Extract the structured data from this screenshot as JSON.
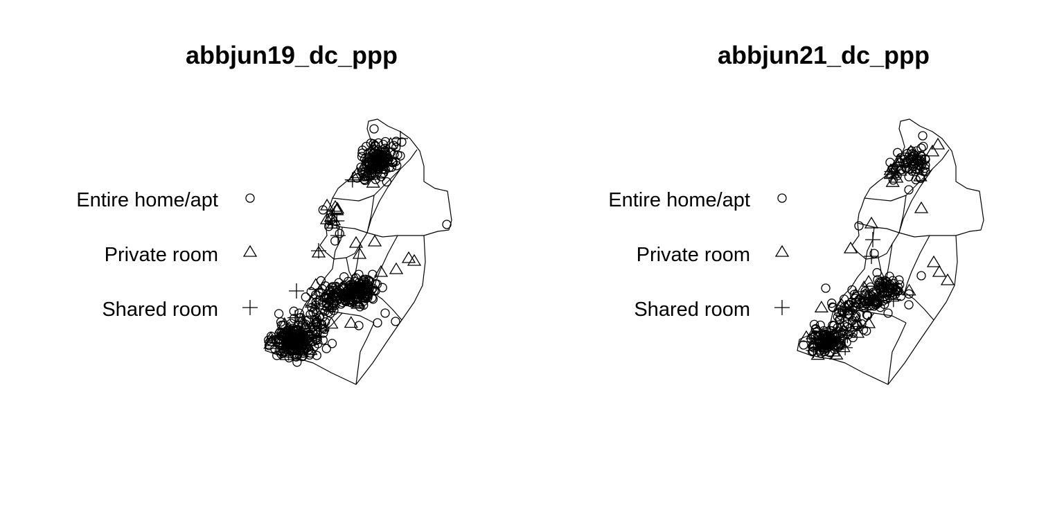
{
  "panels": [
    {
      "id": "abbjun19",
      "title": "abbjun19_dc_ppp",
      "legend": [
        {
          "label": "Entire home/apt",
          "symbol": "circle"
        },
        {
          "label": "Private room",
          "symbol": "triangle"
        },
        {
          "label": "Shared room",
          "symbol": "plus"
        }
      ]
    },
    {
      "id": "abbjun21",
      "title": "abbjun21_dc_ppp",
      "legend": [
        {
          "label": "Entire home/apt",
          "symbol": "circle"
        },
        {
          "label": "Private room",
          "symbol": "triangle"
        },
        {
          "label": "Shared room",
          "symbol": "plus"
        }
      ]
    }
  ],
  "colors": {
    "ink": "#000000",
    "background": "#ffffff"
  }
}
